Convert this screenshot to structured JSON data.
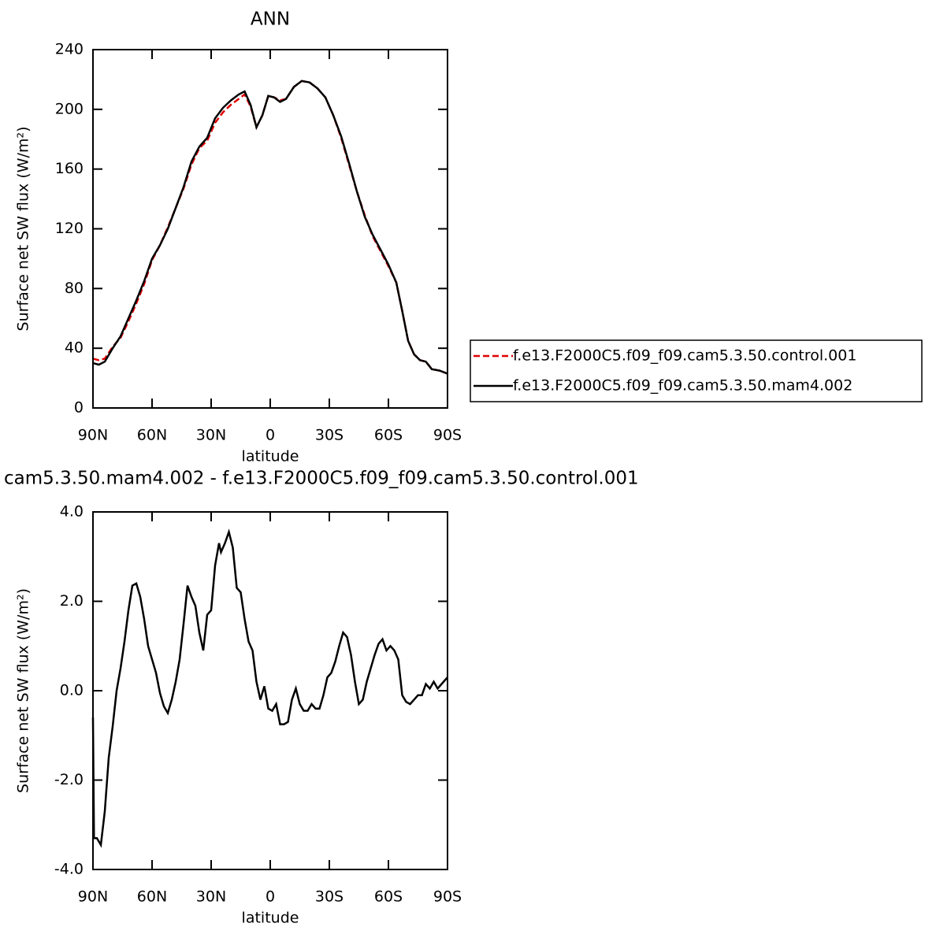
{
  "chart_data": [
    {
      "type": "line",
      "title": "ANN",
      "xlabel": "latitude",
      "ylabel": "Surface net SW flux (W/m²)",
      "x": [
        90,
        87,
        84,
        80,
        76,
        72,
        68,
        64,
        60,
        56,
        52,
        48,
        44,
        40,
        36,
        32,
        28,
        24,
        20,
        16,
        13,
        10,
        7,
        4,
        1,
        -2,
        -5,
        -8,
        -12,
        -16,
        -20,
        -24,
        -28,
        -32,
        -36,
        -40,
        -44,
        -48,
        -52,
        -56,
        -60,
        -64,
        -67,
        -70,
        -73,
        -76,
        -79,
        -82,
        -86,
        -90
      ],
      "series": [
        {
          "name": "f.e13.F2000C5.f09_f09.cam5.3.50.control.001",
          "color": "#e00000",
          "linestyle": "dashed",
          "values": [
            33,
            32,
            33,
            41,
            47,
            58,
            70,
            83,
            99,
            109,
            121,
            134,
            147,
            163,
            174,
            179,
            191,
            198,
            203,
            207,
            210,
            202,
            188,
            196,
            209,
            208,
            206,
            207,
            215,
            219,
            218,
            214,
            208,
            196,
            181,
            163,
            145,
            129,
            115,
            105,
            95,
            84,
            65,
            45,
            36,
            32,
            31,
            26,
            25,
            23
          ]
        },
        {
          "name": "f.e13.F2000C5.f09_f09.cam5.3.50.mam4.002",
          "color": "#000000",
          "linestyle": "solid",
          "values": [
            30,
            29,
            31,
            40,
            48,
            60,
            72,
            85,
            100,
            109,
            120,
            134,
            148,
            165,
            175,
            181,
            194,
            201,
            206,
            210,
            212,
            203,
            188,
            196,
            209,
            208,
            205,
            207,
            215,
            219,
            218,
            214,
            208,
            196,
            182,
            164,
            145,
            128,
            116,
            106,
            96,
            84,
            65,
            45,
            36,
            32,
            31,
            26,
            25,
            23
          ]
        }
      ],
      "xlim": [
        90,
        -90
      ],
      "xticks": [
        {
          "value": 90,
          "label": "90N"
        },
        {
          "value": 60,
          "label": "60N"
        },
        {
          "value": 30,
          "label": "30N"
        },
        0,
        {
          "value": -30,
          "label": "30S"
        },
        {
          "value": -60,
          "label": "60S"
        },
        {
          "value": -90,
          "label": "90S"
        }
      ],
      "ylim": [
        0,
        240
      ],
      "yticks": [
        0,
        40,
        80,
        120,
        160,
        200,
        240
      ],
      "legend": "right"
    },
    {
      "type": "line",
      "title": "cam5.3.50.mam4.002 - f.e13.F2000C5.f09_f09.cam5.3.50.control.001",
      "xlabel": "latitude",
      "ylabel": "Surface net SW flux (W/m²)",
      "x": [
        90,
        89.5,
        88,
        86,
        84,
        82,
        80,
        78,
        76,
        74,
        72,
        70,
        68,
        66,
        64,
        62,
        60,
        58,
        56,
        54,
        52,
        50,
        48,
        46,
        44,
        42,
        40,
        38,
        36,
        34,
        32,
        30,
        28,
        26,
        25,
        23,
        21,
        19,
        17,
        15,
        13,
        11,
        9,
        7,
        5,
        3,
        1,
        -1,
        -3,
        -5,
        -7,
        -9,
        -11,
        -13,
        -15,
        -17,
        -19,
        -21,
        -23,
        -25,
        -27,
        -29,
        -31,
        -33,
        -35,
        -37,
        -39,
        -41,
        -43,
        -45,
        -47,
        -49,
        -51,
        -53,
        -55,
        -57,
        -59,
        -61,
        -63,
        -65,
        -67,
        -69,
        -71,
        -73,
        -75,
        -77,
        -79,
        -81,
        -83,
        -85,
        -87,
        -89,
        -90
      ],
      "series": [
        {
          "name": "difference",
          "color": "#000000",
          "linestyle": "solid",
          "values": [
            -0.6,
            -3.3,
            -3.3,
            -3.45,
            -2.7,
            -1.5,
            -0.8,
            0.0,
            0.5,
            1.1,
            1.8,
            2.35,
            2.4,
            2.1,
            1.6,
            1.0,
            0.7,
            0.4,
            -0.05,
            -0.35,
            -0.5,
            -0.2,
            0.2,
            0.7,
            1.5,
            2.35,
            2.1,
            1.9,
            1.3,
            0.9,
            1.7,
            1.8,
            2.8,
            3.3,
            3.1,
            3.3,
            3.55,
            3.2,
            2.3,
            2.2,
            1.6,
            1.1,
            0.9,
            0.2,
            -0.2,
            0.1,
            -0.4,
            -0.45,
            -0.3,
            -0.75,
            -0.75,
            -0.7,
            -0.2,
            0.05,
            -0.3,
            -0.45,
            -0.45,
            -0.3,
            -0.4,
            -0.4,
            -0.1,
            0.3,
            0.4,
            0.65,
            1.0,
            1.3,
            1.2,
            0.8,
            0.2,
            -0.3,
            -0.2,
            0.2,
            0.5,
            0.8,
            1.05,
            1.15,
            0.9,
            1.0,
            0.9,
            0.7,
            -0.1,
            -0.25,
            -0.3,
            -0.2,
            -0.1,
            -0.1,
            0.15,
            0.05,
            0.2,
            0.05,
            0.15,
            0.25,
            0.3
          ]
        }
      ],
      "xlim": [
        90,
        -90
      ],
      "xticks": [
        {
          "value": 90,
          "label": "90N"
        },
        {
          "value": 60,
          "label": "60N"
        },
        {
          "value": 30,
          "label": "30N"
        },
        0,
        {
          "value": -30,
          "label": "30S"
        },
        {
          "value": -60,
          "label": "60S"
        },
        {
          "value": -90,
          "label": "90S"
        }
      ],
      "ylim": [
        -4,
        4
      ],
      "yticks": [
        {
          "value": -4,
          "label": "-4.0"
        },
        {
          "value": -2,
          "label": "-2.0"
        },
        {
          "value": 0,
          "label": "0.0"
        },
        {
          "value": 2,
          "label": "2.0"
        },
        {
          "value": 4,
          "label": "4.0"
        }
      ]
    }
  ]
}
